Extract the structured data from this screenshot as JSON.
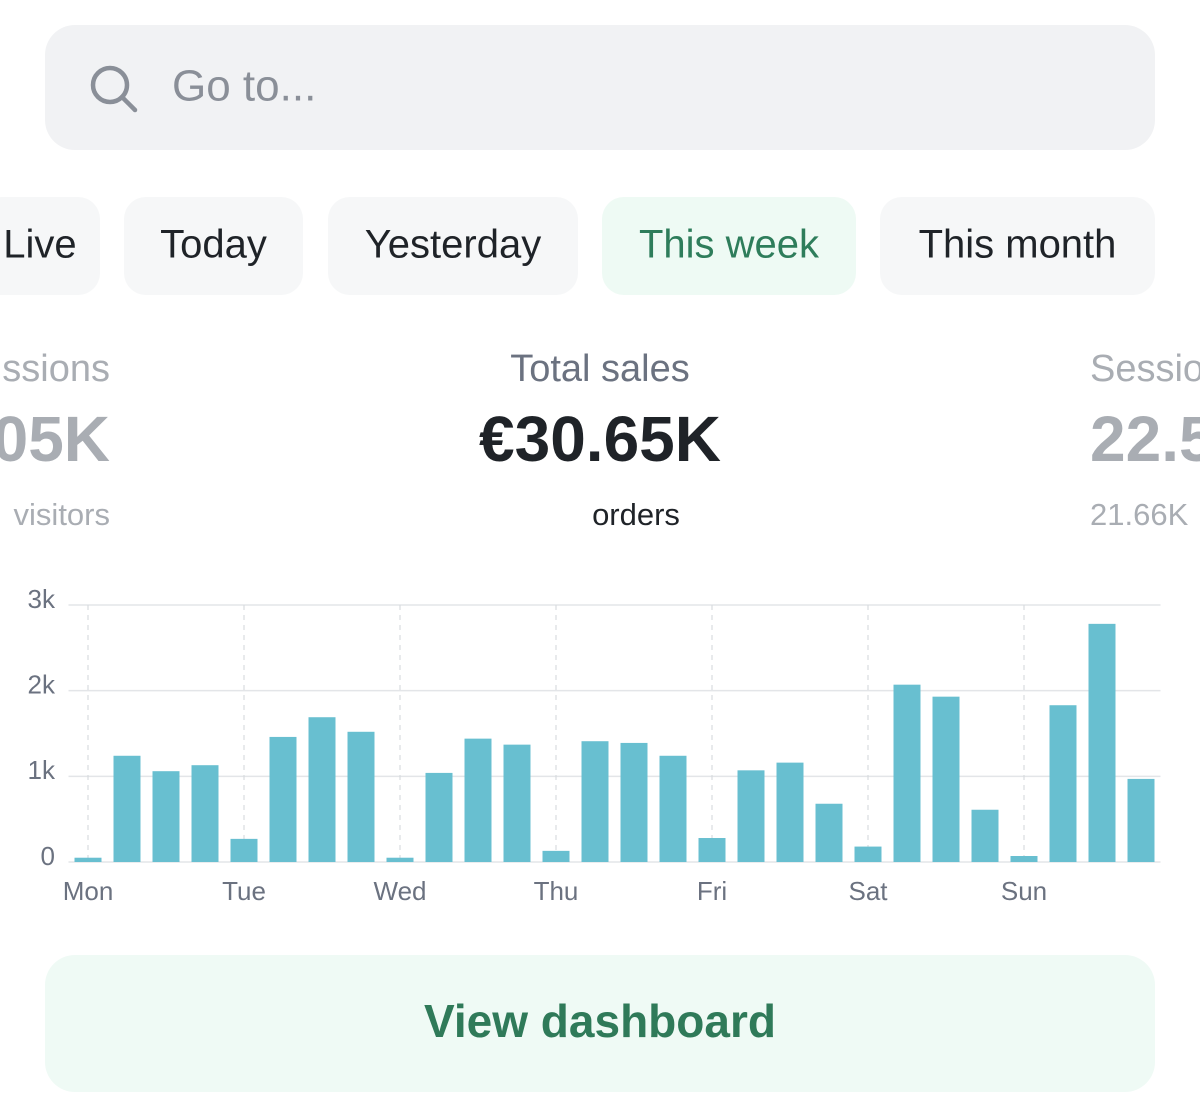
{
  "search": {
    "placeholder": "Go to..."
  },
  "tabs": [
    {
      "label": "Live"
    },
    {
      "label": "Today"
    },
    {
      "label": "Yesterday"
    },
    {
      "label": "This week",
      "active": true
    },
    {
      "label": "This month"
    }
  ],
  "metrics": [
    {
      "label": "ssions",
      "value": "05K",
      "sub": "visitors"
    },
    {
      "label": "Total sales",
      "value": "€30.65K",
      "sub": "orders"
    },
    {
      "label": "Sessio",
      "value": "22.5",
      "sub": "21.66K"
    }
  ],
  "chart_data": {
    "type": "bar",
    "categories": [
      "Mon",
      null,
      null,
      null,
      "Tue",
      null,
      null,
      null,
      "Wed",
      null,
      null,
      null,
      "Thu",
      null,
      null,
      null,
      "Fri",
      null,
      null,
      null,
      "Sat",
      null,
      null,
      null,
      "Sun",
      null,
      null,
      null
    ],
    "values": [
      50,
      1240,
      1060,
      1130,
      270,
      1460,
      1690,
      1520,
      50,
      1040,
      1440,
      1370,
      130,
      1410,
      1390,
      1240,
      280,
      1070,
      1160,
      680,
      180,
      2070,
      1930,
      610,
      70,
      1830,
      2780,
      970
    ],
    "color": "#68bfd0",
    "ylim": [
      0,
      3000
    ],
    "yticks": [
      0,
      {
        "value": 1000,
        "label": "1k"
      },
      {
        "value": 2000,
        "label": "2k"
      },
      {
        "value": 3000,
        "label": "3k"
      }
    ],
    "grid": true
  },
  "button": {
    "label": "View dashboard"
  }
}
